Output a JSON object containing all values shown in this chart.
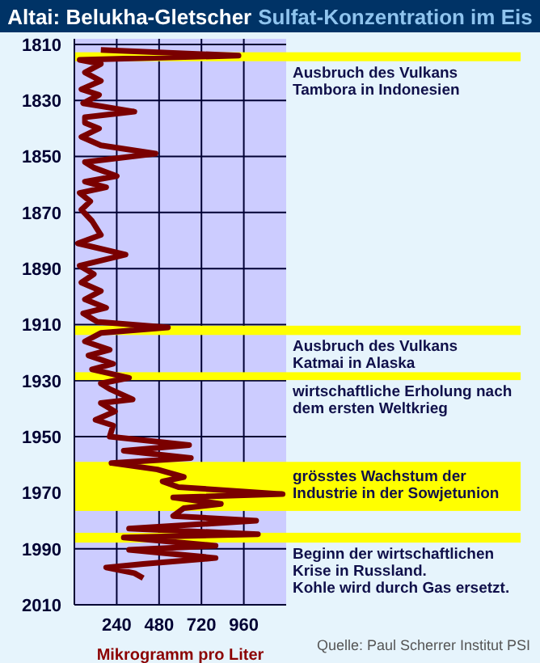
{
  "chart_data": {
    "type": "line",
    "title": "Altai: Belukha-Gletscher",
    "subtitle": "Sulfat-Konzentration im Eis",
    "xlabel": "Mikrogramm pro Liter",
    "orientation": "horizontal",
    "grid": true,
    "x": [
      1812,
      1814,
      1815.5,
      1817,
      1820,
      1823,
      1826,
      1828,
      1831,
      1834,
      1836,
      1838,
      1840,
      1843,
      1846,
      1849,
      1852,
      1854,
      1857,
      1859,
      1861,
      1863,
      1866,
      1869,
      1873,
      1878,
      1881,
      1885,
      1889,
      1892,
      1895,
      1898,
      1901,
      1904,
      1906,
      1909,
      1911,
      1913,
      1916,
      1919,
      1921,
      1924,
      1926,
      1929,
      1931,
      1933,
      1936.7,
      1938,
      1941,
      1944,
      1946,
      1950,
      1953,
      1955,
      1957.6,
      1959.4,
      1961.7,
      1964.4,
      1966,
      1968,
      1970.5,
      1971.7,
      1974,
      1975.5,
      1978.3,
      1980,
      1982.8,
      1984.8,
      1986,
      1988.9,
      1990.4,
      1993.3,
      1995.4,
      1996.7,
      1998.7,
      2000.5
    ],
    "series": [
      {
        "color": "#7a0000",
        "values": [
          150,
          930,
          30,
          150,
          60,
          150,
          40,
          140,
          50,
          340,
          60,
          60,
          140,
          40,
          150,
          460,
          60,
          110,
          240,
          60,
          180,
          30,
          90,
          40,
          100,
          150,
          20,
          290,
          30,
          110,
          40,
          150,
          60,
          180,
          50,
          130,
          530,
          150,
          60,
          200,
          80,
          220,
          100,
          310,
          150,
          200,
          330,
          150,
          230,
          120,
          220,
          200,
          650,
          280,
          660,
          210,
          470,
          620,
          500,
          590,
          1180,
          560,
          830,
          620,
          560,
          1030,
          310,
          1040,
          280,
          800,
          310,
          800,
          390,
          180,
          340,
          390
        ]
      }
    ],
    "xlim": [
      0,
      1200
    ],
    "xticks": [
      240,
      480,
      720,
      960
    ],
    "ylim": [
      2010,
      1808
    ],
    "yticks": [
      1810,
      1830,
      1850,
      1870,
      1890,
      1910,
      1930,
      1950,
      1970,
      1990,
      2010
    ],
    "bands": [
      {
        "axis": "y",
        "from": 1812.8,
        "to": 1816,
        "label": "Ausbruch des Vulkans\nTambora in Indonesien",
        "color": "#ffff00"
      },
      {
        "axis": "y",
        "from": 1910.4,
        "to": 1913.7,
        "label": "Ausbruch des Vulkans\nKatmai in Alaska",
        "color": "#ffff00"
      },
      {
        "axis": "y",
        "from": 1927,
        "to": 1929.8,
        "label": "wirtschaftliche Erholung nach\ndem ersten Weltkrieg",
        "color": "#ffff00"
      },
      {
        "axis": "y",
        "from": 1959,
        "to": 1976.5,
        "label": "grösstes Wachstum der\nIndustrie in der Sowjetunion",
        "color": "#ffff00"
      },
      {
        "axis": "y",
        "from": 1984.3,
        "to": 1987.8,
        "label": "Beginn der wirtschaftlichen\nKrise in Russland.\nKohle wird durch Gas ersetzt.",
        "color": "#ffff00"
      }
    ],
    "annotations": [
      "Quelle: Paul Scherrer Institut PSI"
    ]
  }
}
